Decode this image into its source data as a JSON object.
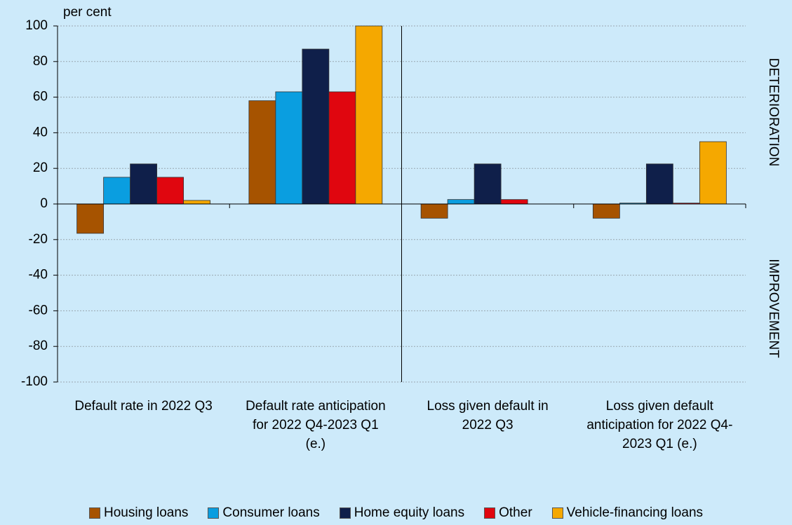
{
  "chart_data": {
    "type": "bar",
    "y_label": "per cent",
    "annotations": [
      "DETERIORATION",
      "IMPROVEMENT"
    ],
    "categories": [
      "Default rate in 2022 Q3",
      "Default rate anticipation for 2022 Q4-2023 Q1 (e.)",
      "Loss given default in 2022 Q3",
      "Loss given default anticipation for 2022 Q4-2023 Q1 (e.)"
    ],
    "series": [
      {
        "name": "Housing loans",
        "color": "#a65300",
        "values": [
          -16.5,
          58,
          -8,
          -8
        ]
      },
      {
        "name": "Consumer loans",
        "color": "#0a9ee0",
        "values": [
          15,
          63,
          2.5,
          0.5
        ]
      },
      {
        "name": "Home equity loans",
        "color": "#0f1f4a",
        "values": [
          22.5,
          87,
          22.5,
          22.5
        ]
      },
      {
        "name": "Other",
        "color": "#e0060f",
        "values": [
          15,
          63,
          2.5,
          0.5
        ]
      },
      {
        "name": "Vehicle-financing loans",
        "color": "#f5a800",
        "values": [
          2,
          100,
          0,
          35
        ]
      }
    ],
    "ylim": [
      -100,
      100
    ],
    "yticks": [
      -100,
      -80,
      -60,
      -40,
      -20,
      0,
      20,
      40,
      60,
      80,
      100
    ],
    "grid": true,
    "legend": "bottom"
  }
}
